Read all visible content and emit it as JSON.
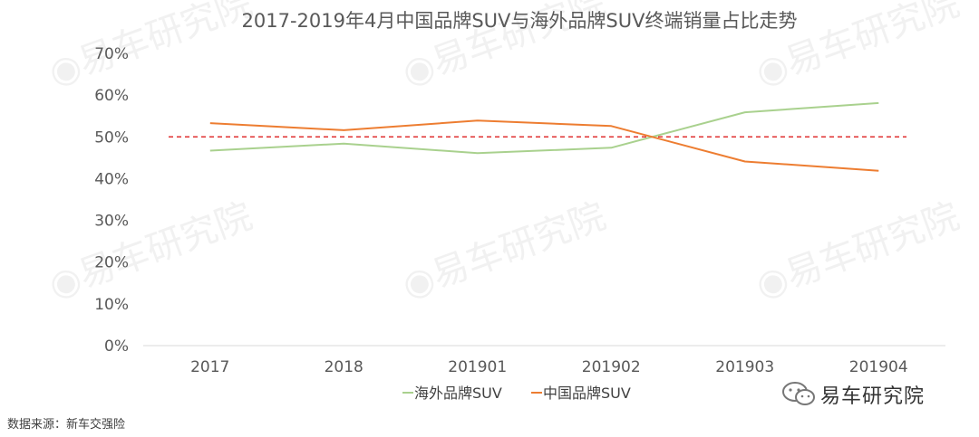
{
  "chart_data": {
    "type": "line",
    "title": "2017-2019年4月中国品牌SUV与海外品牌SUV终端销量占比走势",
    "categories": [
      "2017",
      "2018",
      "201901",
      "201902",
      "201903",
      "201904"
    ],
    "ylim": [
      0,
      70
    ],
    "yticks": [
      0,
      10,
      20,
      30,
      40,
      50,
      60,
      70
    ],
    "ytick_labels": [
      "0%",
      "10%",
      "20%",
      "30%",
      "40%",
      "50%",
      "60%",
      "70%"
    ],
    "reference_line": {
      "value": 50,
      "color": "#e03030",
      "style": "dashed"
    },
    "series": [
      {
        "name": "海外品牌SUV",
        "color": "#a9d18e",
        "values": [
          46.7,
          48.4,
          46.1,
          47.4,
          55.9,
          58.1
        ]
      },
      {
        "name": "中国品牌SUV",
        "color": "#ed7d31",
        "values": [
          53.3,
          51.6,
          53.9,
          52.6,
          44.1,
          41.9
        ]
      }
    ],
    "legend_position": "bottom",
    "grid": false
  },
  "source_text": "数据来源：新车交强险",
  "brand_text": "易车研究院",
  "watermark_text": "易车研究院"
}
